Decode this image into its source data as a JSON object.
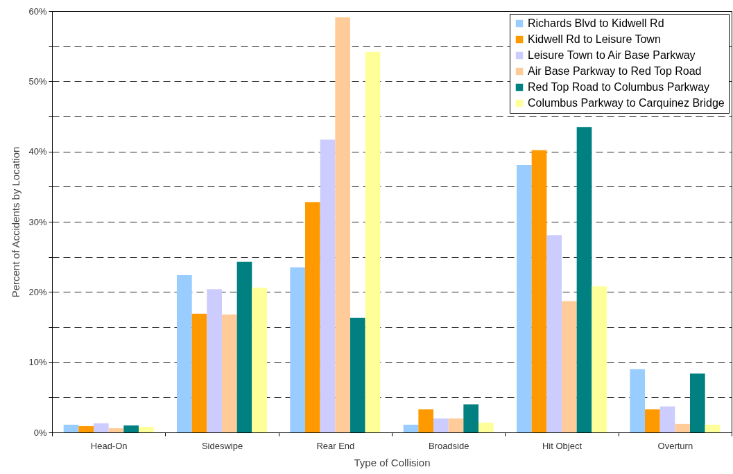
{
  "chart_data": {
    "type": "bar",
    "xlabel": "Type of Collision",
    "ylabel": "Percent of Accidents by Location",
    "categories": [
      "Head-On",
      "Sideswipe",
      "Rear End",
      "Broadside",
      "Hit Object",
      "Overturn"
    ],
    "series": [
      {
        "name": "Richards Blvd to Kidwell Rd",
        "color": "#99ccff",
        "values": [
          1.1,
          22.4,
          23.5,
          1.1,
          38.1,
          9.0
        ]
      },
      {
        "name": "Kidwell Rd to Leisure Town",
        "color": "#ff9900",
        "values": [
          0.9,
          16.9,
          32.8,
          3.3,
          40.2,
          3.3
        ]
      },
      {
        "name": "Leisure Town to Air Base Parkway",
        "color": "#ccccff",
        "values": [
          1.3,
          20.4,
          41.7,
          2.0,
          28.1,
          3.7
        ]
      },
      {
        "name": "Air Base Parkway to Red Top Road",
        "color": "#ffcc99",
        "values": [
          0.6,
          16.8,
          59.1,
          2.0,
          18.7,
          1.2
        ]
      },
      {
        "name": "Red Top Road to Columbus Parkway",
        "color": "#008080",
        "values": [
          1.0,
          24.3,
          16.3,
          4.0,
          43.5,
          8.4
        ]
      },
      {
        "name": "Columbus Parkway to Carquinez Bridge",
        "color": "#ffff99",
        "values": [
          0.8,
          20.6,
          54.2,
          1.4,
          20.8,
          1.1
        ]
      }
    ],
    "ylim": [
      0,
      60
    ],
    "yticks": [
      {
        "value": 0,
        "label": "0%"
      },
      {
        "value": 5,
        "label": null
      },
      {
        "value": 10,
        "label": "10%"
      },
      {
        "value": 15,
        "label": null
      },
      {
        "value": 20,
        "label": "20%"
      },
      {
        "value": 25,
        "label": null
      },
      {
        "value": 30,
        "label": "30%"
      },
      {
        "value": 35,
        "label": null
      },
      {
        "value": 40,
        "label": "40%"
      },
      {
        "value": 45,
        "label": null
      },
      {
        "value": 50,
        "label": "50%"
      },
      {
        "value": 55,
        "label": null
      },
      {
        "value": 60,
        "label": "60%"
      }
    ],
    "grid": "y",
    "legend": "top right"
  }
}
